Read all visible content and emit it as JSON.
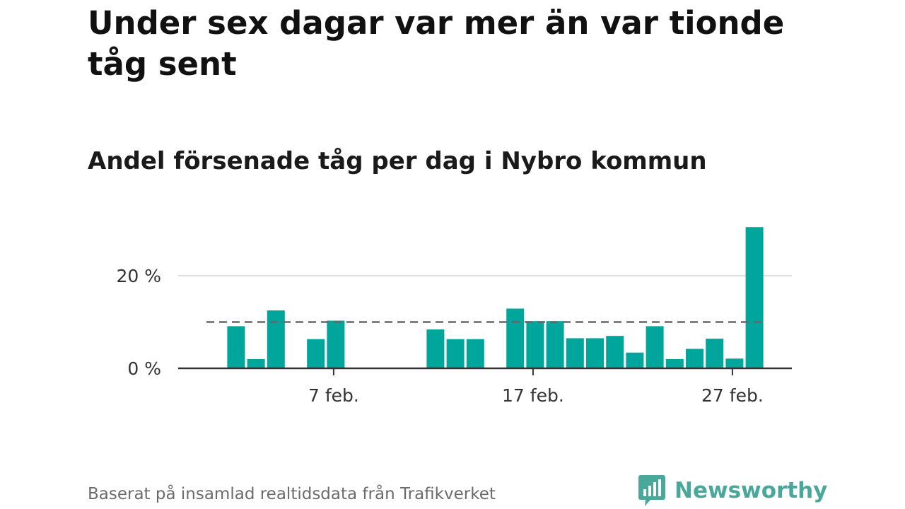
{
  "title": "Under sex dagar var mer än var tionde tåg sent",
  "subtitle": "Andel försenade tåg per dag i Nybro kommun",
  "source": "Baserat på insamlad realtidsdata från Trafikverket",
  "brand": {
    "name": "Newsworthy",
    "color": "#4aa89b",
    "icon": "bar-chart-speech-bubble-icon"
  },
  "chart_data": {
    "type": "bar",
    "unit": "%",
    "bar_color": "#00a69c",
    "reference_line": {
      "value": 10,
      "style": "dashed",
      "color": "#666666"
    },
    "x_ticks": [
      {
        "day": 7,
        "label": "7 feb."
      },
      {
        "day": 17,
        "label": "17 feb."
      },
      {
        "day": 27,
        "label": "27 feb."
      }
    ],
    "y_ticks": [
      {
        "value": 0,
        "label": "0 %"
      },
      {
        "value": 20,
        "label": "20 %"
      }
    ],
    "ylim": [
      0,
      31
    ],
    "xlim_days": [
      0,
      29
    ],
    "grid": true,
    "points": [
      {
        "day": 2,
        "value": 9.1
      },
      {
        "day": 3,
        "value": 2.0
      },
      {
        "day": 4,
        "value": 12.5
      },
      {
        "day": 6,
        "value": 6.3
      },
      {
        "day": 7,
        "value": 10.3
      },
      {
        "day": 12,
        "value": 8.4
      },
      {
        "day": 13,
        "value": 6.3
      },
      {
        "day": 14,
        "value": 6.3
      },
      {
        "day": 16,
        "value": 12.9
      },
      {
        "day": 17,
        "value": 10.2
      },
      {
        "day": 18,
        "value": 10.2
      },
      {
        "day": 19,
        "value": 6.5
      },
      {
        "day": 20,
        "value": 6.5
      },
      {
        "day": 21,
        "value": 7.0
      },
      {
        "day": 22,
        "value": 3.4
      },
      {
        "day": 23,
        "value": 9.1
      },
      {
        "day": 24,
        "value": 2.0
      },
      {
        "day": 25,
        "value": 4.2
      },
      {
        "day": 26,
        "value": 6.4
      },
      {
        "day": 27,
        "value": 2.1
      },
      {
        "day": 28,
        "value": 30.5
      }
    ]
  }
}
